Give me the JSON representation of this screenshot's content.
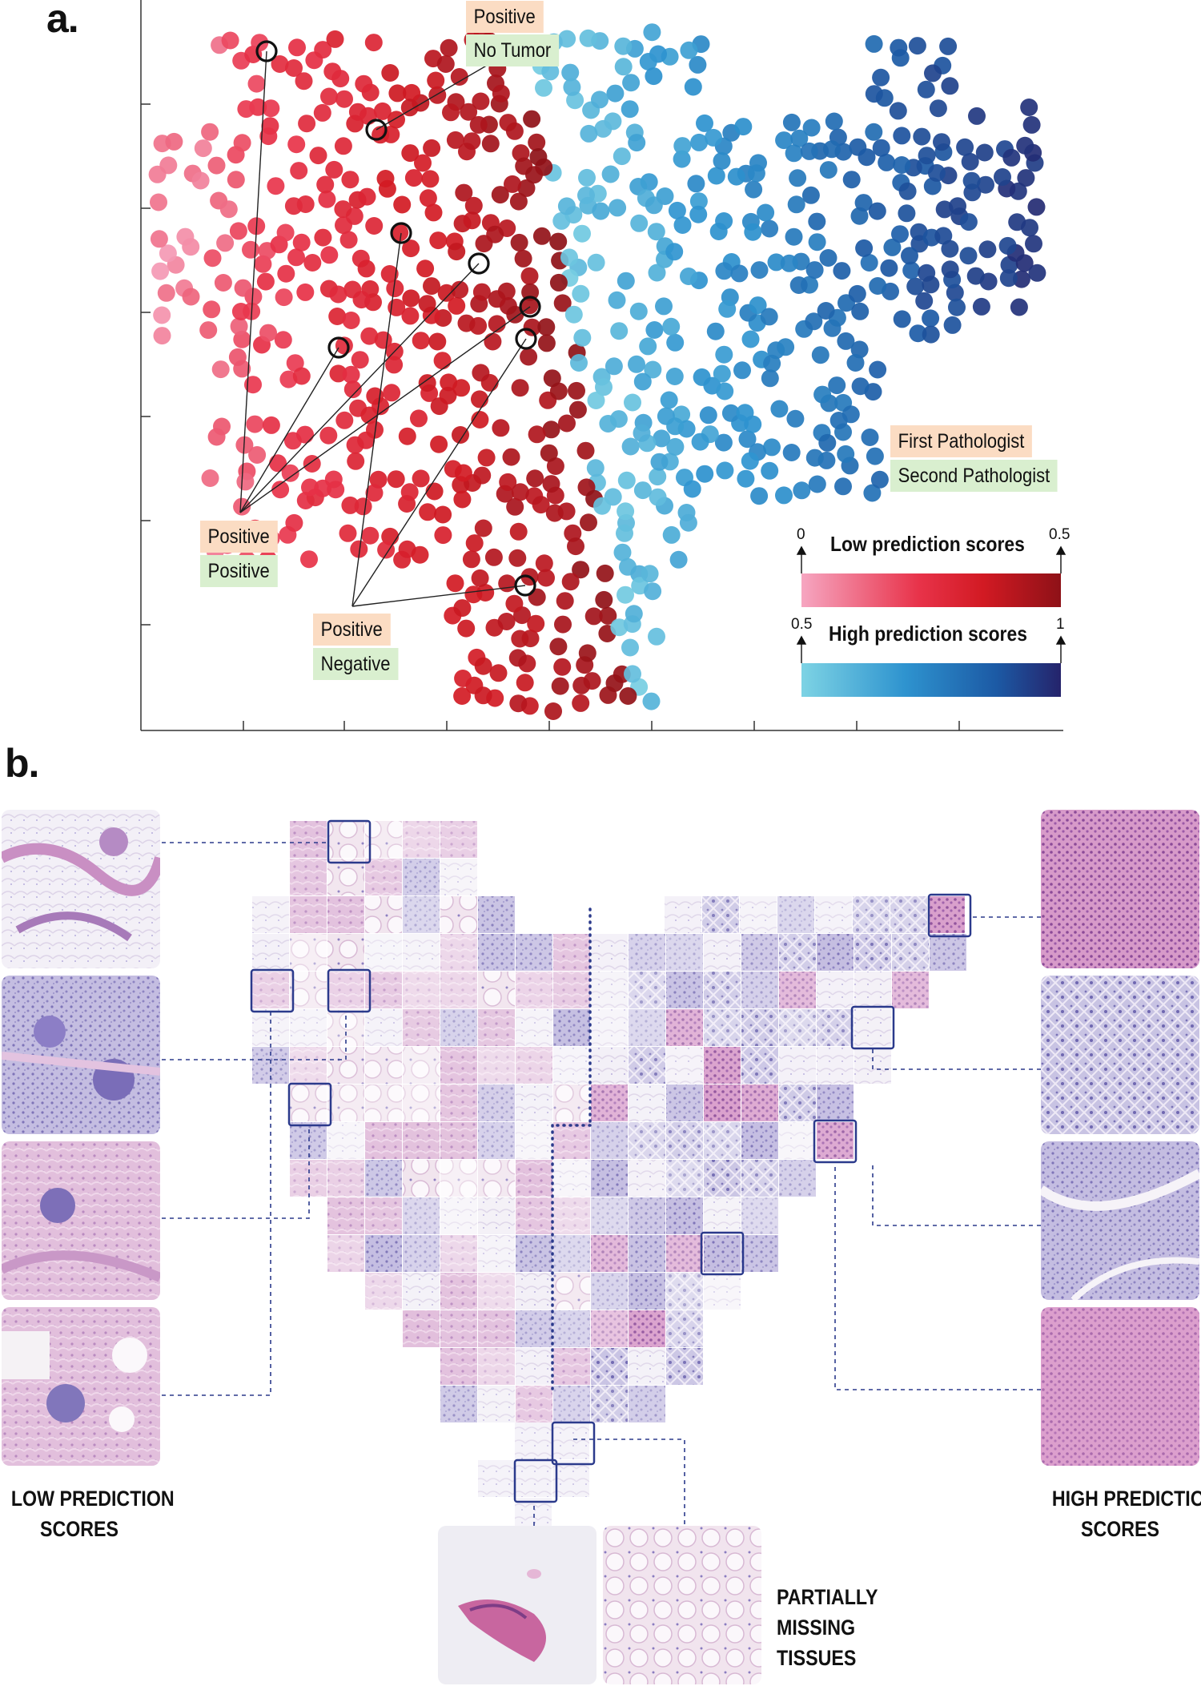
{
  "panel_a": {
    "label": "a.",
    "annotations": [
      {
        "first": "Positive",
        "second": "No Tumor"
      },
      {
        "first": "Positive",
        "second": "Positive"
      },
      {
        "first": "Positive",
        "second": "Negative"
      }
    ],
    "legend": {
      "first": "First Pathologist",
      "second": "Second Pathologist"
    },
    "colorbars": [
      {
        "title": "Low prediction scores",
        "min": "0",
        "max": "0.5",
        "colors": [
          "#f6a6c1",
          "#e8334a",
          "#d21a23",
          "#8e1117"
        ]
      },
      {
        "title": "High prediction scores",
        "min": "0.5",
        "max": "1",
        "colors": [
          "#7dd3e4",
          "#2e93cf",
          "#1c5aa5",
          "#25236b"
        ]
      }
    ]
  },
  "panel_b": {
    "label": "b.",
    "captions": {
      "low": "LOW PREDICTION SCORES",
      "high": "HIGH PREDICTION SCORES",
      "missing": "PARTIALLY MISSING TISSUES"
    },
    "colors": {
      "frame": "#2b3a8c",
      "tile_pink": "#dcb7d6",
      "tile_purple": "#b9b2da",
      "tile_light": "#ece6ee"
    }
  },
  "chart_data": {
    "type": "scatter",
    "title": "",
    "xlabel": "",
    "ylabel": "",
    "grid": false,
    "legend_placement": "bottom-right",
    "notes": "t-SNE style embedding of tiles colored by prediction score; axes unlabeled",
    "series": [
      {
        "name": "Low prediction scores",
        "color_range": [
          "#f6a6c1",
          "#8e1117"
        ],
        "score_range": [
          0,
          0.5
        ]
      },
      {
        "name": "High prediction scores",
        "color_range": [
          "#7dd3e4",
          "#25236b"
        ],
        "score_range": [
          0.5,
          1
        ]
      }
    ]
  }
}
